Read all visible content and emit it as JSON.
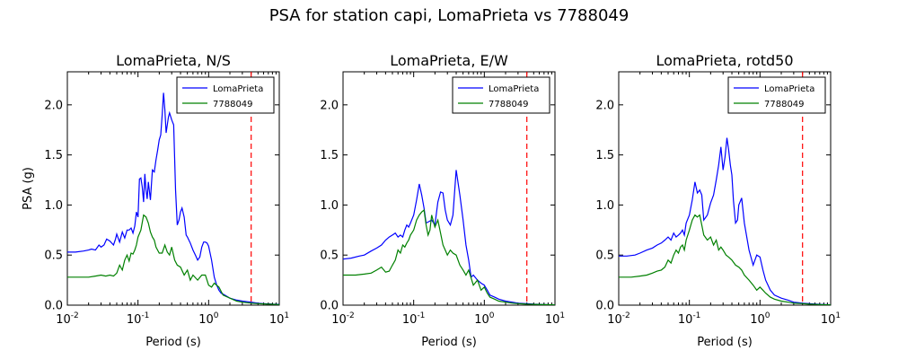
{
  "figure": {
    "suptitle": "PSA for station capi, LomaPrieta vs 7788049"
  },
  "chart_data": [
    {
      "type": "line",
      "title": "LomaPrieta, N/S",
      "xlabel": "Period (s)",
      "ylabel": "PSA (g)",
      "xscale": "log",
      "xlim": [
        0.01,
        10
      ],
      "ylim": [
        0,
        2.33
      ],
      "xticks": [
        0.01,
        0.1,
        1,
        10
      ],
      "xtick_labels": [
        [
          "10",
          "-2"
        ],
        [
          "10",
          "-1"
        ],
        [
          "10",
          "0"
        ],
        [
          "10",
          "1"
        ]
      ],
      "yticks": [
        0,
        0.5,
        1,
        1.5,
        2
      ],
      "ytick_labels": [
        "0.0",
        "0.5",
        "1.0",
        "1.5",
        "2.0"
      ],
      "grid": false,
      "legend": "top-right",
      "vline": {
        "x": 4.0,
        "color": "#ff0000",
        "style": "dashed"
      },
      "series": [
        {
          "name": "LomaPrieta",
          "color": "#0000ff",
          "x": [
            0.01,
            0.013,
            0.017,
            0.02,
            0.022,
            0.025,
            0.028,
            0.03,
            0.033,
            0.036,
            0.04,
            0.045,
            0.048,
            0.05,
            0.055,
            0.06,
            0.065,
            0.07,
            0.075,
            0.08,
            0.085,
            0.09,
            0.095,
            0.1,
            0.105,
            0.11,
            0.115,
            0.12,
            0.125,
            0.13,
            0.135,
            0.14,
            0.15,
            0.16,
            0.17,
            0.18,
            0.19,
            0.2,
            0.21,
            0.22,
            0.23,
            0.24,
            0.25,
            0.26,
            0.27,
            0.28,
            0.3,
            0.32,
            0.34,
            0.36,
            0.38,
            0.4,
            0.42,
            0.45,
            0.48,
            0.5,
            0.55,
            0.6,
            0.65,
            0.7,
            0.75,
            0.8,
            0.85,
            0.9,
            0.95,
            1.0,
            1.1,
            1.2,
            1.3,
            1.4,
            1.5,
            1.6,
            1.8,
            2.0,
            2.5,
            3.0,
            4.0,
            5.0,
            6.0,
            8.0,
            10.0
          ],
          "y": [
            0.53,
            0.53,
            0.54,
            0.55,
            0.56,
            0.55,
            0.6,
            0.58,
            0.6,
            0.66,
            0.64,
            0.6,
            0.66,
            0.71,
            0.63,
            0.73,
            0.67,
            0.75,
            0.75,
            0.77,
            0.72,
            0.79,
            0.93,
            0.88,
            1.26,
            1.27,
            1.18,
            1.03,
            1.31,
            1.15,
            1.06,
            1.23,
            1.05,
            1.35,
            1.33,
            1.45,
            1.55,
            1.65,
            1.7,
            1.9,
            2.12,
            1.95,
            1.72,
            1.8,
            1.88,
            1.92,
            1.85,
            1.8,
            1.15,
            0.8,
            0.85,
            0.93,
            0.97,
            0.88,
            0.7,
            0.68,
            0.62,
            0.55,
            0.5,
            0.45,
            0.48,
            0.58,
            0.63,
            0.63,
            0.62,
            0.59,
            0.45,
            0.28,
            0.2,
            0.15,
            0.12,
            0.11,
            0.09,
            0.07,
            0.05,
            0.04,
            0.03,
            0.02,
            0.015,
            0.01,
            0.008
          ]
        },
        {
          "name": "7788049",
          "color": "#008000",
          "x": [
            0.01,
            0.015,
            0.02,
            0.025,
            0.03,
            0.035,
            0.04,
            0.045,
            0.05,
            0.055,
            0.06,
            0.065,
            0.07,
            0.075,
            0.08,
            0.085,
            0.09,
            0.095,
            0.1,
            0.11,
            0.12,
            0.13,
            0.14,
            0.15,
            0.16,
            0.17,
            0.18,
            0.2,
            0.22,
            0.24,
            0.26,
            0.28,
            0.3,
            0.33,
            0.36,
            0.4,
            0.45,
            0.5,
            0.55,
            0.6,
            0.7,
            0.8,
            0.9,
            1.0,
            1.1,
            1.2,
            1.4,
            1.6,
            2.0,
            2.5,
            3.0,
            4.0,
            5.0,
            7.0,
            10.0
          ],
          "y": [
            0.28,
            0.28,
            0.28,
            0.29,
            0.3,
            0.29,
            0.3,
            0.29,
            0.32,
            0.4,
            0.35,
            0.45,
            0.5,
            0.44,
            0.52,
            0.51,
            0.55,
            0.6,
            0.68,
            0.75,
            0.9,
            0.88,
            0.82,
            0.73,
            0.68,
            0.65,
            0.58,
            0.52,
            0.52,
            0.6,
            0.53,
            0.5,
            0.58,
            0.45,
            0.4,
            0.38,
            0.3,
            0.35,
            0.25,
            0.3,
            0.25,
            0.3,
            0.3,
            0.2,
            0.18,
            0.22,
            0.18,
            0.1,
            0.07,
            0.04,
            0.03,
            0.02,
            0.015,
            0.01,
            0.006
          ]
        }
      ]
    },
    {
      "type": "line",
      "title": "LomaPrieta, E/W",
      "xlabel": "Period (s)",
      "ylabel": "",
      "xscale": "log",
      "xlim": [
        0.01,
        10
      ],
      "ylim": [
        0,
        2.33
      ],
      "xticks": [
        0.01,
        0.1,
        1,
        10
      ],
      "xtick_labels": [
        [
          "10",
          "-2"
        ],
        [
          "10",
          "-1"
        ],
        [
          "10",
          "0"
        ],
        [
          "10",
          "1"
        ]
      ],
      "yticks": [
        0,
        0.5,
        1,
        1.5,
        2
      ],
      "ytick_labels": [
        "0.0",
        "0.5",
        "1.0",
        "1.5",
        "2.0"
      ],
      "grid": false,
      "legend": "top-right",
      "vline": {
        "x": 4.0,
        "color": "#ff0000",
        "style": "dashed"
      },
      "series": [
        {
          "name": "LomaPrieta",
          "color": "#0000ff",
          "x": [
            0.01,
            0.013,
            0.017,
            0.02,
            0.025,
            0.03,
            0.035,
            0.04,
            0.045,
            0.05,
            0.055,
            0.06,
            0.065,
            0.07,
            0.075,
            0.08,
            0.085,
            0.09,
            0.1,
            0.11,
            0.12,
            0.13,
            0.14,
            0.15,
            0.16,
            0.18,
            0.2,
            0.22,
            0.24,
            0.26,
            0.28,
            0.3,
            0.33,
            0.36,
            0.4,
            0.45,
            0.5,
            0.55,
            0.6,
            0.65,
            0.7,
            0.8,
            0.9,
            1.0,
            1.1,
            1.2,
            1.4,
            1.6,
            2.0,
            2.5,
            3.0,
            4.0,
            5.0,
            7.0,
            10.0
          ],
          "y": [
            0.46,
            0.47,
            0.49,
            0.5,
            0.54,
            0.57,
            0.6,
            0.65,
            0.68,
            0.7,
            0.72,
            0.68,
            0.7,
            0.68,
            0.75,
            0.8,
            0.78,
            0.82,
            0.9,
            1.05,
            1.21,
            1.1,
            0.97,
            0.82,
            0.83,
            0.85,
            0.8,
            1.03,
            1.13,
            1.12,
            0.95,
            0.85,
            0.8,
            0.9,
            1.35,
            1.1,
            0.85,
            0.6,
            0.45,
            0.28,
            0.3,
            0.25,
            0.22,
            0.2,
            0.15,
            0.1,
            0.08,
            0.06,
            0.04,
            0.03,
            0.02,
            0.015,
            0.01,
            0.006,
            0.003
          ]
        },
        {
          "name": "7788049",
          "color": "#008000",
          "x": [
            0.01,
            0.015,
            0.02,
            0.025,
            0.03,
            0.035,
            0.04,
            0.045,
            0.05,
            0.055,
            0.06,
            0.065,
            0.07,
            0.075,
            0.08,
            0.085,
            0.09,
            0.1,
            0.11,
            0.12,
            0.13,
            0.14,
            0.15,
            0.16,
            0.17,
            0.18,
            0.2,
            0.22,
            0.24,
            0.26,
            0.28,
            0.3,
            0.33,
            0.36,
            0.4,
            0.45,
            0.5,
            0.55,
            0.6,
            0.7,
            0.8,
            0.9,
            1.0,
            1.1,
            1.2,
            1.4,
            1.6,
            2.0,
            2.5,
            3.0,
            4.0,
            5.0,
            7.0,
            10.0
          ],
          "y": [
            0.3,
            0.3,
            0.31,
            0.32,
            0.35,
            0.38,
            0.33,
            0.34,
            0.4,
            0.45,
            0.55,
            0.52,
            0.6,
            0.58,
            0.62,
            0.65,
            0.7,
            0.75,
            0.85,
            0.9,
            0.93,
            0.95,
            0.8,
            0.7,
            0.75,
            0.9,
            0.78,
            0.85,
            0.72,
            0.6,
            0.55,
            0.5,
            0.55,
            0.52,
            0.5,
            0.4,
            0.35,
            0.3,
            0.35,
            0.2,
            0.25,
            0.15,
            0.18,
            0.12,
            0.08,
            0.06,
            0.04,
            0.03,
            0.02,
            0.015,
            0.01,
            0.008,
            0.005,
            0.003
          ]
        }
      ]
    },
    {
      "type": "line",
      "title": "LomaPrieta, rotd50",
      "xlabel": "Period (s)",
      "ylabel": "",
      "xscale": "log",
      "xlim": [
        0.01,
        10
      ],
      "ylim": [
        0,
        2.33
      ],
      "xticks": [
        0.01,
        0.1,
        1,
        10
      ],
      "xtick_labels": [
        [
          "10",
          "-2"
        ],
        [
          "10",
          "-1"
        ],
        [
          "10",
          "0"
        ],
        [
          "10",
          "1"
        ]
      ],
      "yticks": [
        0,
        0.5,
        1,
        1.5,
        2
      ],
      "ytick_labels": [
        "0.0",
        "0.5",
        "1.0",
        "1.5",
        "2.0"
      ],
      "grid": false,
      "legend": "top-right",
      "vline": {
        "x": 4.0,
        "color": "#ff0000",
        "style": "dashed"
      },
      "series": [
        {
          "name": "LomaPrieta",
          "color": "#0000ff",
          "x": [
            0.01,
            0.013,
            0.017,
            0.02,
            0.025,
            0.03,
            0.035,
            0.04,
            0.045,
            0.05,
            0.055,
            0.06,
            0.065,
            0.07,
            0.075,
            0.08,
            0.085,
            0.09,
            0.1,
            0.11,
            0.12,
            0.13,
            0.14,
            0.15,
            0.16,
            0.18,
            0.2,
            0.22,
            0.24,
            0.26,
            0.28,
            0.3,
            0.32,
            0.34,
            0.36,
            0.38,
            0.4,
            0.42,
            0.45,
            0.48,
            0.5,
            0.55,
            0.6,
            0.7,
            0.8,
            0.9,
            1.0,
            1.1,
            1.2,
            1.4,
            1.6,
            2.0,
            2.5,
            3.0,
            4.0,
            5.0,
            7.0,
            10.0
          ],
          "y": [
            0.49,
            0.49,
            0.5,
            0.52,
            0.55,
            0.57,
            0.6,
            0.62,
            0.65,
            0.68,
            0.65,
            0.72,
            0.68,
            0.7,
            0.72,
            0.75,
            0.7,
            0.82,
            0.9,
            1.05,
            1.23,
            1.12,
            1.15,
            1.1,
            0.85,
            0.9,
            1.02,
            1.1,
            1.25,
            1.4,
            1.58,
            1.35,
            1.48,
            1.67,
            1.55,
            1.4,
            1.3,
            1.05,
            0.82,
            0.85,
            1.0,
            1.07,
            0.82,
            0.55,
            0.4,
            0.5,
            0.48,
            0.35,
            0.25,
            0.15,
            0.1,
            0.07,
            0.05,
            0.03,
            0.02,
            0.015,
            0.008,
            0.004
          ]
        },
        {
          "name": "7788049",
          "color": "#008000",
          "x": [
            0.01,
            0.015,
            0.02,
            0.025,
            0.03,
            0.035,
            0.04,
            0.045,
            0.05,
            0.055,
            0.06,
            0.065,
            0.07,
            0.075,
            0.08,
            0.085,
            0.09,
            0.1,
            0.11,
            0.12,
            0.13,
            0.14,
            0.15,
            0.16,
            0.18,
            0.2,
            0.22,
            0.24,
            0.26,
            0.28,
            0.3,
            0.33,
            0.36,
            0.4,
            0.45,
            0.5,
            0.55,
            0.6,
            0.7,
            0.8,
            0.9,
            1.0,
            1.1,
            1.2,
            1.4,
            1.6,
            2.0,
            2.5,
            3.0,
            4.0,
            5.0,
            7.0,
            10.0
          ],
          "y": [
            0.28,
            0.28,
            0.29,
            0.3,
            0.32,
            0.34,
            0.35,
            0.38,
            0.45,
            0.42,
            0.5,
            0.55,
            0.52,
            0.58,
            0.6,
            0.55,
            0.65,
            0.75,
            0.85,
            0.9,
            0.88,
            0.9,
            0.8,
            0.7,
            0.65,
            0.68,
            0.6,
            0.65,
            0.55,
            0.58,
            0.55,
            0.5,
            0.48,
            0.45,
            0.4,
            0.38,
            0.35,
            0.3,
            0.25,
            0.2,
            0.15,
            0.18,
            0.15,
            0.12,
            0.08,
            0.06,
            0.04,
            0.03,
            0.02,
            0.015,
            0.01,
            0.006,
            0.003
          ]
        }
      ]
    }
  ]
}
